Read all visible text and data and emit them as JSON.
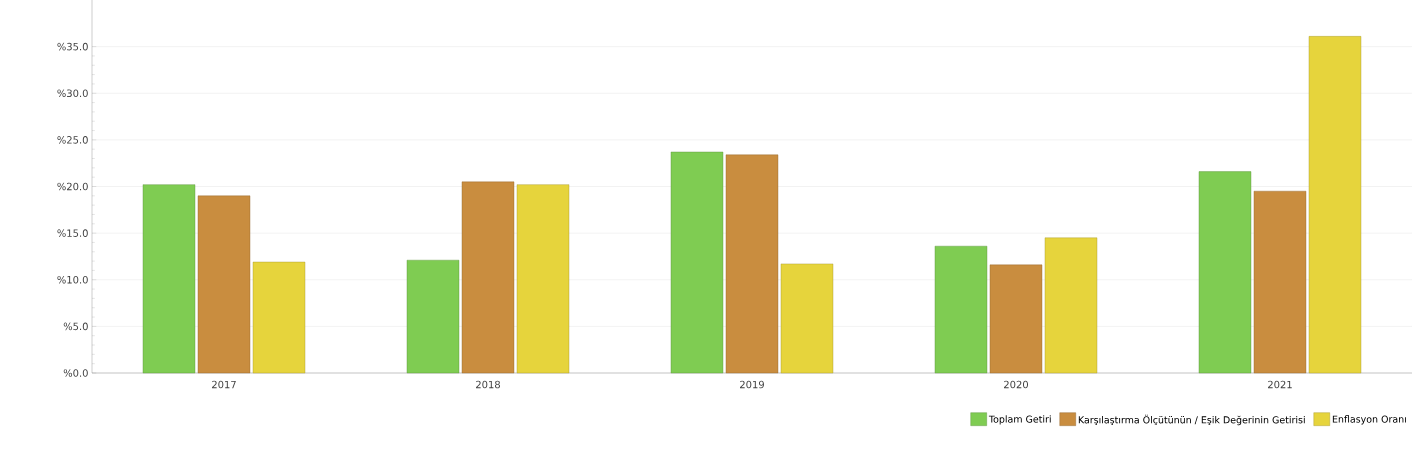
{
  "chart_data": {
    "type": "bar",
    "categories": [
      "2017",
      "2018",
      "2019",
      "2020",
      "2021"
    ],
    "series": [
      {
        "name": "Toplam Getiri",
        "color": "#7fcc52",
        "values": [
          20.2,
          12.1,
          23.7,
          13.6,
          21.6
        ]
      },
      {
        "name": "Karşılaştırma Ölçütünün / Eşik Değerinin Getirisi",
        "color": "#c98d3f",
        "values": [
          19.0,
          20.5,
          23.4,
          11.6,
          19.5
        ]
      },
      {
        "name": "Enflasyon Oranı",
        "color": "#e6d43c",
        "values": [
          11.9,
          20.2,
          11.7,
          14.5,
          36.1
        ]
      }
    ],
    "ylim": [
      0,
      40
    ],
    "yticks": [
      {
        "value": 0,
        "label": "%0.0"
      },
      {
        "value": 5,
        "label": "%5.0"
      },
      {
        "value": 10,
        "label": "%10.0"
      },
      {
        "value": 15,
        "label": "%15.0"
      },
      {
        "value": 20,
        "label": "%20.0"
      },
      {
        "value": 25,
        "label": "%25.0"
      },
      {
        "value": 30,
        "label": "%30.0"
      },
      {
        "value": 35,
        "label": "%35.0"
      }
    ],
    "grid": "y",
    "legend": "bottom right"
  }
}
